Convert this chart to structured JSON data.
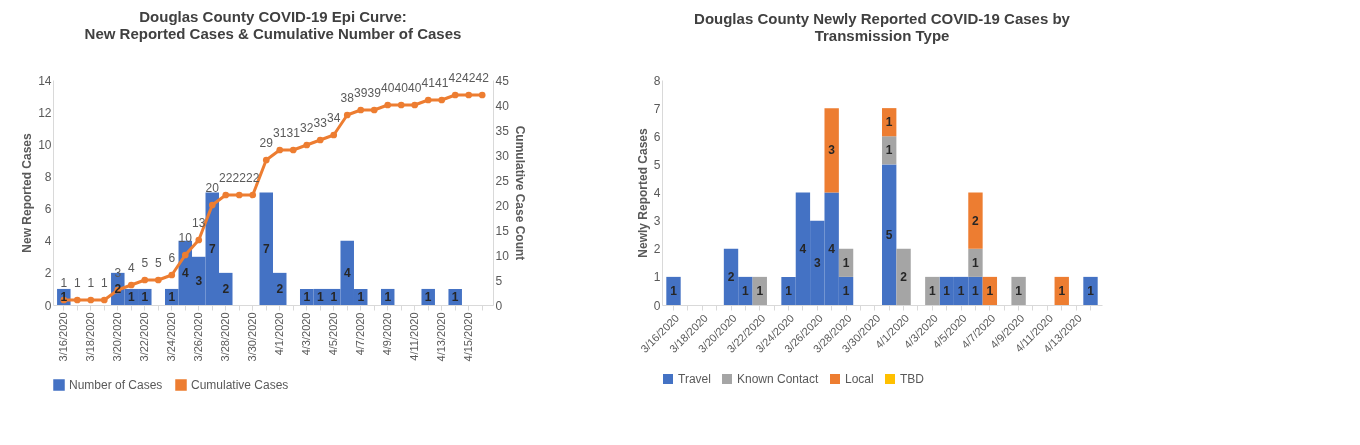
{
  "chart_data": [
    {
      "type": "bar",
      "title": "Douglas County COVID-19 Epi Curve:\nNew Reported Cases & Cumulative Number of Cases",
      "ylabel": "New Reported Cases",
      "y2label": "Cumulative Case Count",
      "categories": [
        "3/16/2020",
        null,
        "3/18/2020",
        null,
        "3/20/2020",
        null,
        "3/22/2020",
        null,
        "3/24/2020",
        null,
        "3/26/2020",
        null,
        "3/28/2020",
        null,
        "3/30/2020",
        null,
        "4/1/2020",
        null,
        "4/3/2020",
        null,
        "4/5/2020",
        null,
        "4/7/2020",
        null,
        "4/9/2020",
        null,
        "4/11/2020",
        null,
        "4/13/2020",
        null,
        "4/15/2020",
        null
      ],
      "series": [
        {
          "name": "Number of Cases",
          "type": "bar",
          "color": "#4472c4",
          "values": [
            1,
            null,
            null,
            null,
            2,
            1,
            1,
            null,
            1,
            4,
            3,
            7,
            2,
            null,
            null,
            7,
            2,
            null,
            1,
            1,
            1,
            4,
            1,
            null,
            1,
            null,
            null,
            1,
            null,
            1,
            null,
            null
          ]
        },
        {
          "name": "Cumulative Cases",
          "type": "line",
          "axis": "y2",
          "color": "#ed7d31",
          "values": [
            1,
            1,
            1,
            1,
            3,
            4,
            5,
            5,
            6,
            10,
            13,
            20,
            22,
            22,
            22,
            29,
            31,
            31,
            32,
            33,
            34,
            38,
            39,
            39,
            40,
            40,
            40,
            41,
            41,
            42,
            42,
            42
          ]
        }
      ],
      "ylim": [
        0,
        14
      ],
      "yticks": [
        0,
        2,
        4,
        6,
        8,
        10,
        12,
        14
      ],
      "y2lim": [
        0,
        45
      ],
      "y2ticks": [
        0,
        5,
        10,
        15,
        20,
        25,
        30,
        35,
        40,
        45
      ],
      "marker": "circle",
      "data_labels": true,
      "legend": "bottom",
      "grid": false
    },
    {
      "type": "bar",
      "title": "Douglas County Newly Reported COVID-19 Cases by\nTransmission Type",
      "ylabel": "Newly Reported Cases",
      "stacked": true,
      "categories": [
        "3/16/2020",
        null,
        "3/18/2020",
        null,
        "3/20/2020",
        null,
        "3/22/2020",
        null,
        "3/24/2020",
        null,
        "3/26/2020",
        null,
        "3/28/2020",
        null,
        "3/30/2020",
        null,
        "4/1/2020",
        null,
        "4/3/2020",
        null,
        "4/5/2020",
        null,
        "4/7/2020",
        null,
        "4/9/2020",
        null,
        "4/11/2020",
        null,
        "4/13/2020",
        null
      ],
      "series": [
        {
          "name": "Travel",
          "color": "#4472c4",
          "values": [
            1,
            null,
            null,
            null,
            2,
            1,
            null,
            null,
            1,
            4,
            3,
            4,
            1,
            null,
            null,
            5,
            null,
            null,
            null,
            1,
            1,
            1,
            null,
            null,
            null,
            null,
            null,
            null,
            null,
            1
          ]
        },
        {
          "name": "Known Contact",
          "color": "#a5a5a5",
          "values": [
            null,
            null,
            null,
            null,
            null,
            null,
            1,
            null,
            null,
            null,
            null,
            null,
            1,
            null,
            null,
            1,
            2,
            null,
            1,
            null,
            null,
            1,
            null,
            null,
            1,
            null,
            null,
            null,
            null,
            null
          ]
        },
        {
          "name": "Local",
          "color": "#ed7d31",
          "values": [
            null,
            null,
            null,
            null,
            null,
            null,
            null,
            null,
            null,
            null,
            null,
            3,
            null,
            null,
            null,
            1,
            null,
            null,
            null,
            null,
            null,
            2,
            1,
            null,
            null,
            null,
            null,
            1,
            null,
            null
          ]
        },
        {
          "name": "TBD",
          "color": "#ffc000",
          "values": [
            null,
            null,
            null,
            null,
            null,
            null,
            null,
            null,
            null,
            null,
            null,
            null,
            null,
            null,
            null,
            null,
            null,
            null,
            null,
            null,
            null,
            null,
            null,
            null,
            null,
            null,
            null,
            null,
            null,
            null
          ]
        }
      ],
      "ylim": [
        0,
        8
      ],
      "yticks": [
        0,
        1,
        2,
        3,
        4,
        5,
        6,
        7,
        8
      ],
      "data_labels": true,
      "legend": "bottom",
      "grid": false
    }
  ]
}
